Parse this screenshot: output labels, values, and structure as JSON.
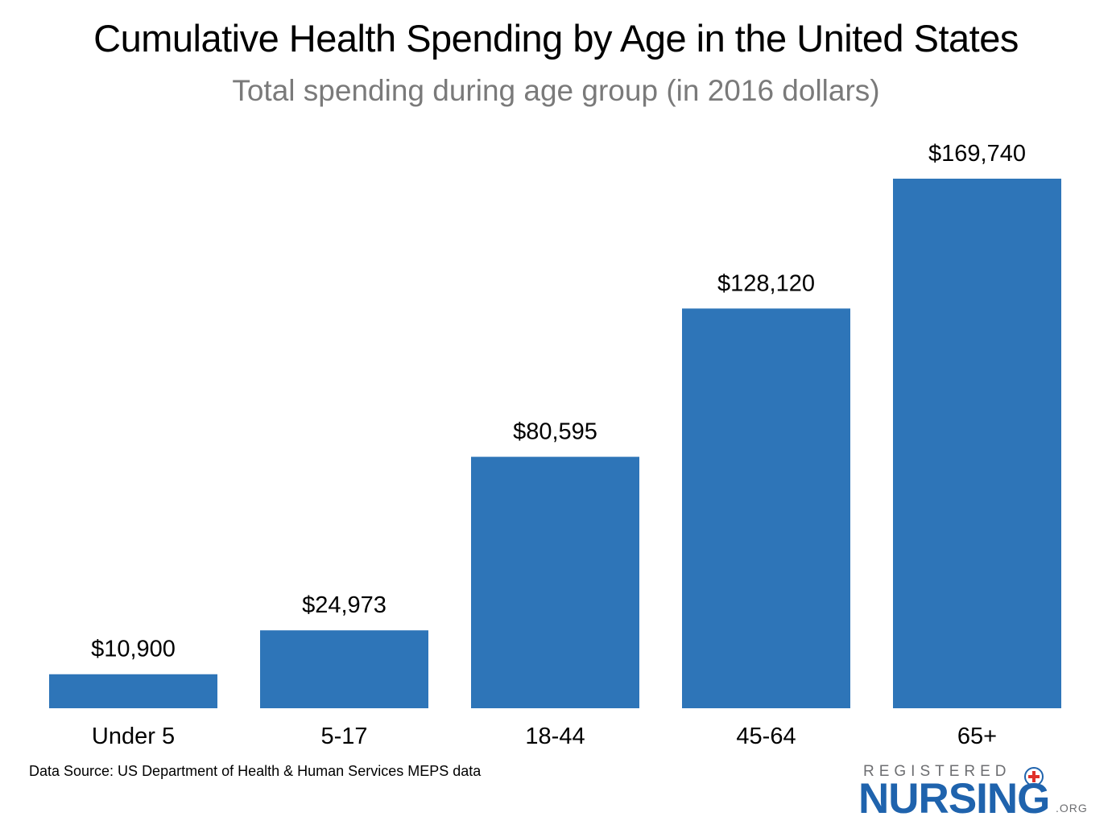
{
  "chart_data": {
    "type": "bar",
    "title": "Cumulative Health Spending by Age in the United States",
    "subtitle": "Total spending during age group (in 2016 dollars)",
    "categories": [
      "Under 5",
      "5-17",
      "18-44",
      "45-64",
      "65+"
    ],
    "values": [
      10900,
      24973,
      80595,
      128120,
      169740
    ],
    "data_labels": [
      "$10,900",
      "$24,973",
      "$80,595",
      "$128,120",
      "$169,740"
    ],
    "xlabel": "",
    "ylabel": "",
    "ylim": [
      0,
      169740
    ],
    "grid": false,
    "legend": "none",
    "bar_color": "#2e75b8"
  },
  "footnote": "Data Source: US Department of Health & Human Services MEPS data",
  "logo": {
    "top_text": "REGISTERED",
    "main_text": "NURSING",
    "suffix_text": ".ORG",
    "primary_color": "#1f63ad",
    "cross_color": "#e0312a"
  }
}
